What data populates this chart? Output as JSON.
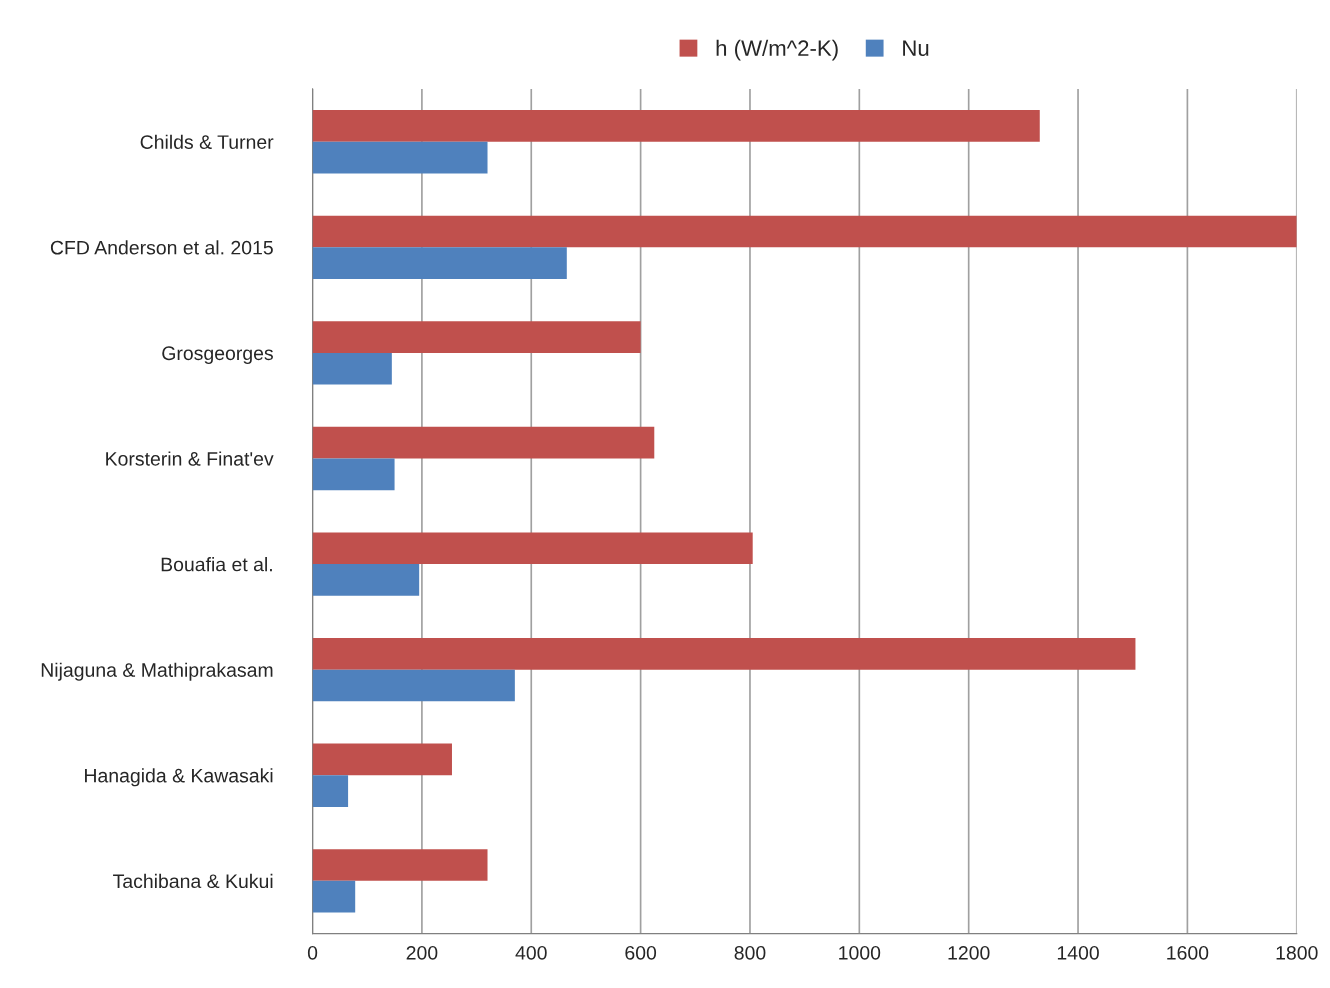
{
  "chart_data": {
    "type": "bar",
    "orientation": "horizontal",
    "categories": [
      "Childs & Turner",
      "CFD Anderson et al. 2015",
      "Grosgeorges",
      "Korsterin & Finat'ev",
      "Bouafia et al.",
      "Nijaguna & Mathiprakasam",
      "Hanagida & Kawasaki",
      "Tachibana & Kukui"
    ],
    "series": [
      {
        "name": "h (W/m^2-K)",
        "color": "#c0504d",
        "values": [
          1330,
          1800,
          600,
          625,
          805,
          1505,
          255,
          320
        ]
      },
      {
        "name": "Nu",
        "color": "#4f81bd",
        "values": [
          320,
          465,
          145,
          150,
          195,
          370,
          65,
          78
        ]
      }
    ],
    "xlim": [
      0,
      1800
    ],
    "xticks": [
      0,
      200,
      400,
      600,
      800,
      1000,
      1200,
      1400,
      1600,
      1800
    ],
    "grid": "x",
    "legend": "top"
  }
}
